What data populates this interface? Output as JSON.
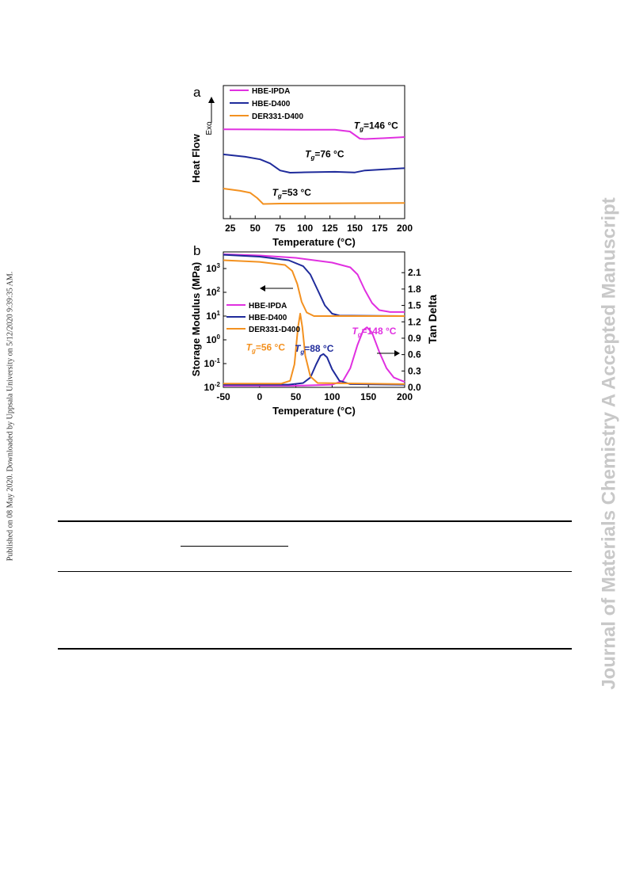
{
  "side_left": "Published on 08 May 2020. Downloaded by Uppsala University on 5/12/2020 9:39:35 AM.",
  "side_right": "Journal of Materials Chemistry A Accepted Manuscript",
  "colors": {
    "ipda": "#e030e0",
    "d400": "#1f2b9b",
    "der": "#f39120",
    "ink": "#000000"
  },
  "chart_data": [
    {
      "panel": "a",
      "type": "line",
      "xlabel": "Temperature (°C)",
      "ylabel": "Heat Flow",
      "exo_label": "Exo",
      "xticks": [
        25,
        50,
        75,
        100,
        125,
        150,
        175,
        200
      ],
      "xlim": [
        18,
        200
      ],
      "ylim": [
        0,
        1
      ],
      "legend": [
        "HBE-IPDA",
        "HBE-D400",
        "DER331-D400"
      ],
      "legend_position": "top-left",
      "series": [
        {
          "name": "HBE-IPDA",
          "points": [
            [
              18,
              0.671
            ],
            [
              50,
              0.67
            ],
            [
              100,
              0.668
            ],
            [
              130,
              0.668
            ],
            [
              145,
              0.655
            ],
            [
              155,
              0.601
            ],
            [
              160,
              0.598
            ],
            [
              180,
              0.605
            ],
            [
              200,
              0.613
            ]
          ]
        },
        {
          "name": "HBE-D400",
          "points": [
            [
              18,
              0.483
            ],
            [
              40,
              0.465
            ],
            [
              55,
              0.445
            ],
            [
              65,
              0.415
            ],
            [
              75,
              0.362
            ],
            [
              85,
              0.345
            ],
            [
              100,
              0.348
            ],
            [
              130,
              0.352
            ],
            [
              150,
              0.347
            ],
            [
              160,
              0.362
            ],
            [
              200,
              0.379
            ]
          ]
        },
        {
          "name": "DER331-D400",
          "points": [
            [
              18,
              0.226
            ],
            [
              35,
              0.209
            ],
            [
              45,
              0.194
            ],
            [
              52,
              0.155
            ],
            [
              58,
              0.11
            ],
            [
              75,
              0.113
            ],
            [
              150,
              0.116
            ],
            [
              200,
              0.118
            ]
          ]
        }
      ],
      "annotations": [
        {
          "label": "Tg=146 °C",
          "sub": "g",
          "value": "=146 °C",
          "x": 172,
          "y": 0.7,
          "series": "HBE-IPDA"
        },
        {
          "label": "Tg=76 °C",
          "sub": "g",
          "value": "=76 °C",
          "x": 123,
          "y": 0.485,
          "series": "HBE-D400"
        },
        {
          "label": "Tg=53 °C",
          "sub": "g",
          "value": "=53 °C",
          "x": 90,
          "y": 0.195,
          "series": "DER331-D400"
        }
      ]
    },
    {
      "panel": "b",
      "type": "line",
      "xlabel": "Temperature (°C)",
      "ylabel_left": "Storage Modulus (MPa)",
      "ylabel_right": "Tan Delta",
      "xticks": [
        -50,
        0,
        50,
        100,
        150,
        200
      ],
      "xlim": [
        -50,
        200
      ],
      "ylim_left_log10": [
        -2,
        3.7
      ],
      "yticks_left": [
        {
          "base": "10",
          "exp": "-2",
          "v": -2
        },
        {
          "base": "10",
          "exp": "-1",
          "v": -1
        },
        {
          "base": "10",
          "exp": "0",
          "v": 0
        },
        {
          "base": "10",
          "exp": "1",
          "v": 1
        },
        {
          "base": "10",
          "exp": "2",
          "v": 2
        },
        {
          "base": "10",
          "exp": "3",
          "v": 3
        }
      ],
      "ylim_right": [
        0,
        2.48
      ],
      "yticks_right": [
        "0.0",
        "0.3",
        "0.6",
        "0.9",
        "1.2",
        "1.5",
        "1.8",
        "2.1"
      ],
      "legend": [
        "HBE-IPDA",
        "HBE-D400",
        "DER331-D400"
      ],
      "legend_position": "center-left",
      "modulus_series": [
        {
          "name": "HBE-IPDA",
          "points": [
            [
              -50,
              3.6
            ],
            [
              0,
              3.55
            ],
            [
              50,
              3.45
            ],
            [
              100,
              3.25
            ],
            [
              125,
              3.05
            ],
            [
              135,
              2.75
            ],
            [
              145,
              2.1
            ],
            [
              155,
              1.55
            ],
            [
              165,
              1.25
            ],
            [
              180,
              1.17
            ],
            [
              200,
              1.17
            ]
          ]
        },
        {
          "name": "HBE-D400",
          "points": [
            [
              -50,
              3.58
            ],
            [
              0,
              3.5
            ],
            [
              40,
              3.35
            ],
            [
              60,
              3.1
            ],
            [
              70,
              2.75
            ],
            [
              80,
              2.1
            ],
            [
              90,
              1.45
            ],
            [
              100,
              1.1
            ],
            [
              110,
              1.02
            ],
            [
              200,
              1.0
            ]
          ]
        },
        {
          "name": "DER331-D400",
          "points": [
            [
              -50,
              3.35
            ],
            [
              0,
              3.28
            ],
            [
              35,
              3.15
            ],
            [
              45,
              2.9
            ],
            [
              52,
              2.35
            ],
            [
              58,
              1.6
            ],
            [
              65,
              1.15
            ],
            [
              75,
              1.0
            ],
            [
              100,
              1.0
            ],
            [
              200,
              1.0
            ]
          ]
        }
      ],
      "tan_series": [
        {
          "name": "HBE-IPDA",
          "points": [
            [
              -50,
              0.03
            ],
            [
              50,
              0.03
            ],
            [
              100,
              0.05
            ],
            [
              115,
              0.12
            ],
            [
              125,
              0.35
            ],
            [
              135,
              0.78
            ],
            [
              143,
              1.05
            ],
            [
              148,
              1.1
            ],
            [
              155,
              1.0
            ],
            [
              165,
              0.65
            ],
            [
              175,
              0.35
            ],
            [
              185,
              0.18
            ],
            [
              200,
              0.1
            ]
          ]
        },
        {
          "name": "HBE-D400",
          "points": [
            [
              -50,
              0.05
            ],
            [
              40,
              0.05
            ],
            [
              60,
              0.08
            ],
            [
              70,
              0.18
            ],
            [
              78,
              0.42
            ],
            [
              84,
              0.58
            ],
            [
              88,
              0.61
            ],
            [
              93,
              0.55
            ],
            [
              100,
              0.33
            ],
            [
              110,
              0.12
            ],
            [
              125,
              0.06
            ],
            [
              200,
              0.05
            ]
          ]
        },
        {
          "name": "DER331-D400",
          "points": [
            [
              -50,
              0.07
            ],
            [
              30,
              0.07
            ],
            [
              42,
              0.12
            ],
            [
              48,
              0.42
            ],
            [
              53,
              1.1
            ],
            [
              56,
              1.35
            ],
            [
              59,
              1.1
            ],
            [
              63,
              0.58
            ],
            [
              70,
              0.2
            ],
            [
              80,
              0.08
            ],
            [
              200,
              0.06
            ]
          ]
        }
      ],
      "annotations": [
        {
          "label": "Tg=56 °C",
          "sub": "g",
          "value": "=56 °C",
          "x": 14,
          "y": 0.73,
          "series": "DER331-D400"
        },
        {
          "label": "Tg=88 °C",
          "sub": "g",
          "value": "=88 °C",
          "x": 81,
          "y": 0.71,
          "series": "HBE-D400"
        },
        {
          "label": "Tg=148 °C",
          "sub": "g",
          "value": "=148 °C",
          "x": 160,
          "y": 1.03,
          "series": "HBE-IPDA"
        }
      ]
    }
  ]
}
